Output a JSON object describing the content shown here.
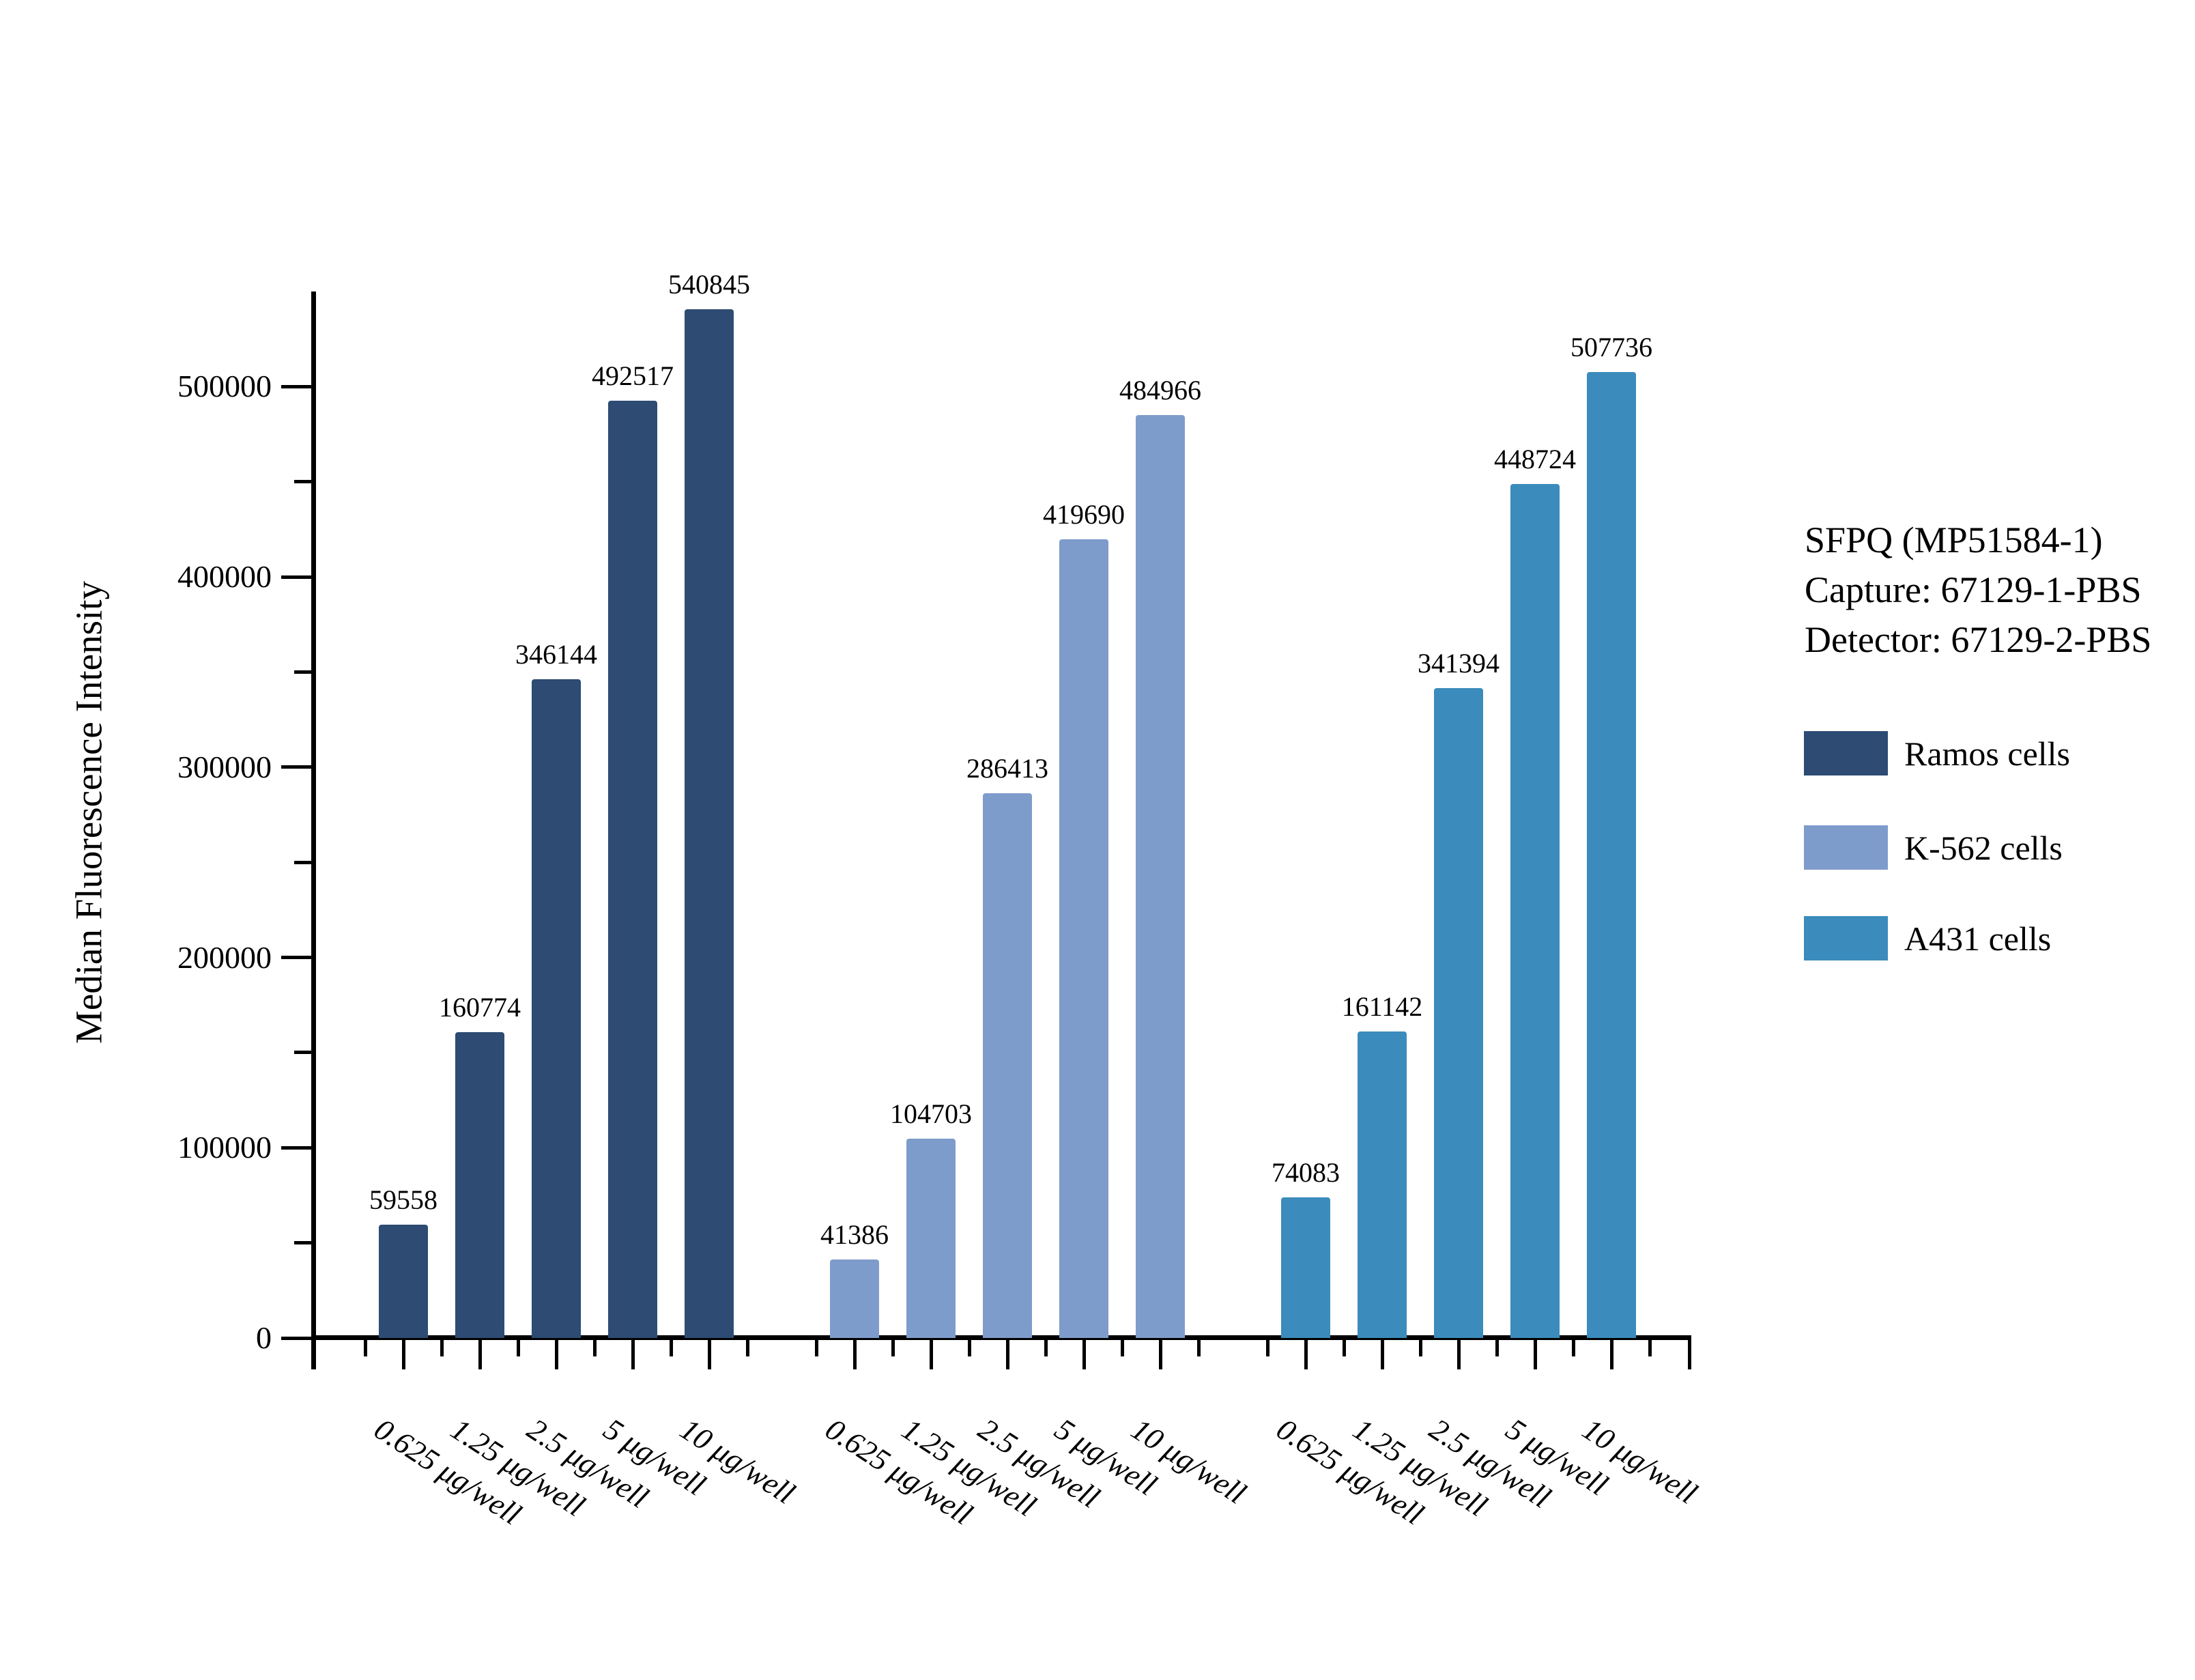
{
  "chart_data": {
    "type": "bar",
    "title": "",
    "xlabel": "",
    "ylabel": "Median Fluorescence Intensity",
    "categories": [
      "0.625 μg/well",
      "1.25 μg/well",
      "2.5 μg/well",
      "5 μg/well",
      "10 μg/well"
    ],
    "series": [
      {
        "name": "Ramos cells",
        "color": "#2D4B73",
        "values": [
          59558,
          160774,
          346144,
          492517,
          540845
        ]
      },
      {
        "name": "K-562 cells",
        "color": "#7E9CCB",
        "values": [
          41386,
          104703,
          286413,
          419690,
          484966
        ]
      },
      {
        "name": "A431 cells",
        "color": "#3B8BBC",
        "values": [
          74083,
          161142,
          341394,
          448724,
          507736
        ]
      }
    ],
    "ylim": [
      0,
      550000
    ],
    "y_major_step": 100000,
    "y_minor_step": 50000,
    "y_tick_labels": [
      "0",
      "100000",
      "200000",
      "300000",
      "400000",
      "500000"
    ],
    "grid": false,
    "legend_position": "right",
    "bar_value_labels_shown": true
  },
  "legend": {
    "header_lines": [
      "SFPQ (MP51584-1)",
      "Capture: 67129-1-PBS",
      "Detector: 67129-2-PBS"
    ]
  }
}
